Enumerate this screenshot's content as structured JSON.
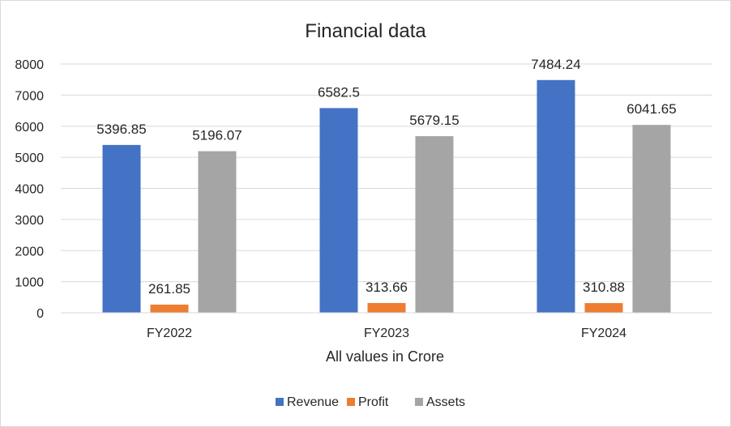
{
  "chart_data": {
    "type": "bar",
    "title": "Financial data",
    "xlabel": "All values in Crore",
    "ylabel": "",
    "categories": [
      "FY2022",
      "FY2023",
      "FY2024"
    ],
    "series": [
      {
        "name": "Revenue",
        "color": "#4472C4",
        "values": [
          5396.85,
          6582.5,
          7484.24
        ],
        "labels": [
          "5396.85",
          "6582.5",
          "7484.24"
        ]
      },
      {
        "name": "Profit",
        "color": "#ED7D31",
        "values": [
          261.85,
          313.66,
          310.88
        ],
        "labels": [
          "261.85",
          "313.66",
          "310.88"
        ]
      },
      {
        "name": "Assets",
        "color": "#A5A5A5",
        "values": [
          5196.07,
          5679.15,
          6041.65
        ],
        "labels": [
          "5196.07",
          "5679.15",
          "6041.65"
        ]
      }
    ],
    "ylim": [
      0,
      8000
    ],
    "yticks": [
      0,
      1000,
      2000,
      3000,
      4000,
      5000,
      6000,
      7000,
      8000
    ],
    "grid": true,
    "legend": "bottom"
  }
}
